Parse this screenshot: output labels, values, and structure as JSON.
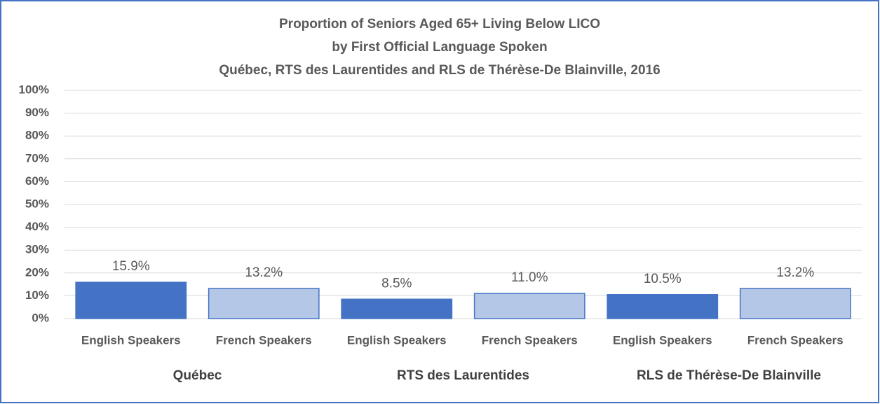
{
  "chart_data": {
    "type": "bar",
    "title": [
      "Proportion of Seniors Aged 65+ Living Below LICO",
      "by First Official Language Spoken",
      "Québec, RTS des Laurentides and RLS de Thérèse-De Blainville, 2016"
    ],
    "categories": [
      "English Speakers",
      "French Speakers",
      "English Speakers",
      "French Speakers",
      "English Speakers",
      "French Speakers"
    ],
    "groups": [
      "Québec",
      "RTS des Laurentides",
      "RLS de Thérèse-De Blainville"
    ],
    "values": [
      15.9,
      13.2,
      8.5,
      11.0,
      10.5,
      13.2
    ],
    "value_labels": [
      "15.9%",
      "13.2%",
      "8.5%",
      "11.0%",
      "10.5%",
      "13.2%"
    ],
    "colors": [
      "#4472c4",
      "#b4c7e7",
      "#4472c4",
      "#b4c7e7",
      "#4472c4",
      "#b4c7e7"
    ],
    "edgecolor": "#4472c4",
    "ylim": [
      0,
      100
    ],
    "yticks": [
      {
        "value": 0,
        "label": "0%"
      },
      {
        "value": 10,
        "label": "10%"
      },
      {
        "value": 20,
        "label": "20%"
      },
      {
        "value": 30,
        "label": "30%"
      },
      {
        "value": 40,
        "label": "40%"
      },
      {
        "value": 50,
        "label": "50%"
      },
      {
        "value": 60,
        "label": "60%"
      },
      {
        "value": 70,
        "label": "70%"
      },
      {
        "value": 80,
        "label": "80%"
      },
      {
        "value": 90,
        "label": "90%"
      },
      {
        "value": 100,
        "label": "100%"
      }
    ],
    "grid": true
  }
}
